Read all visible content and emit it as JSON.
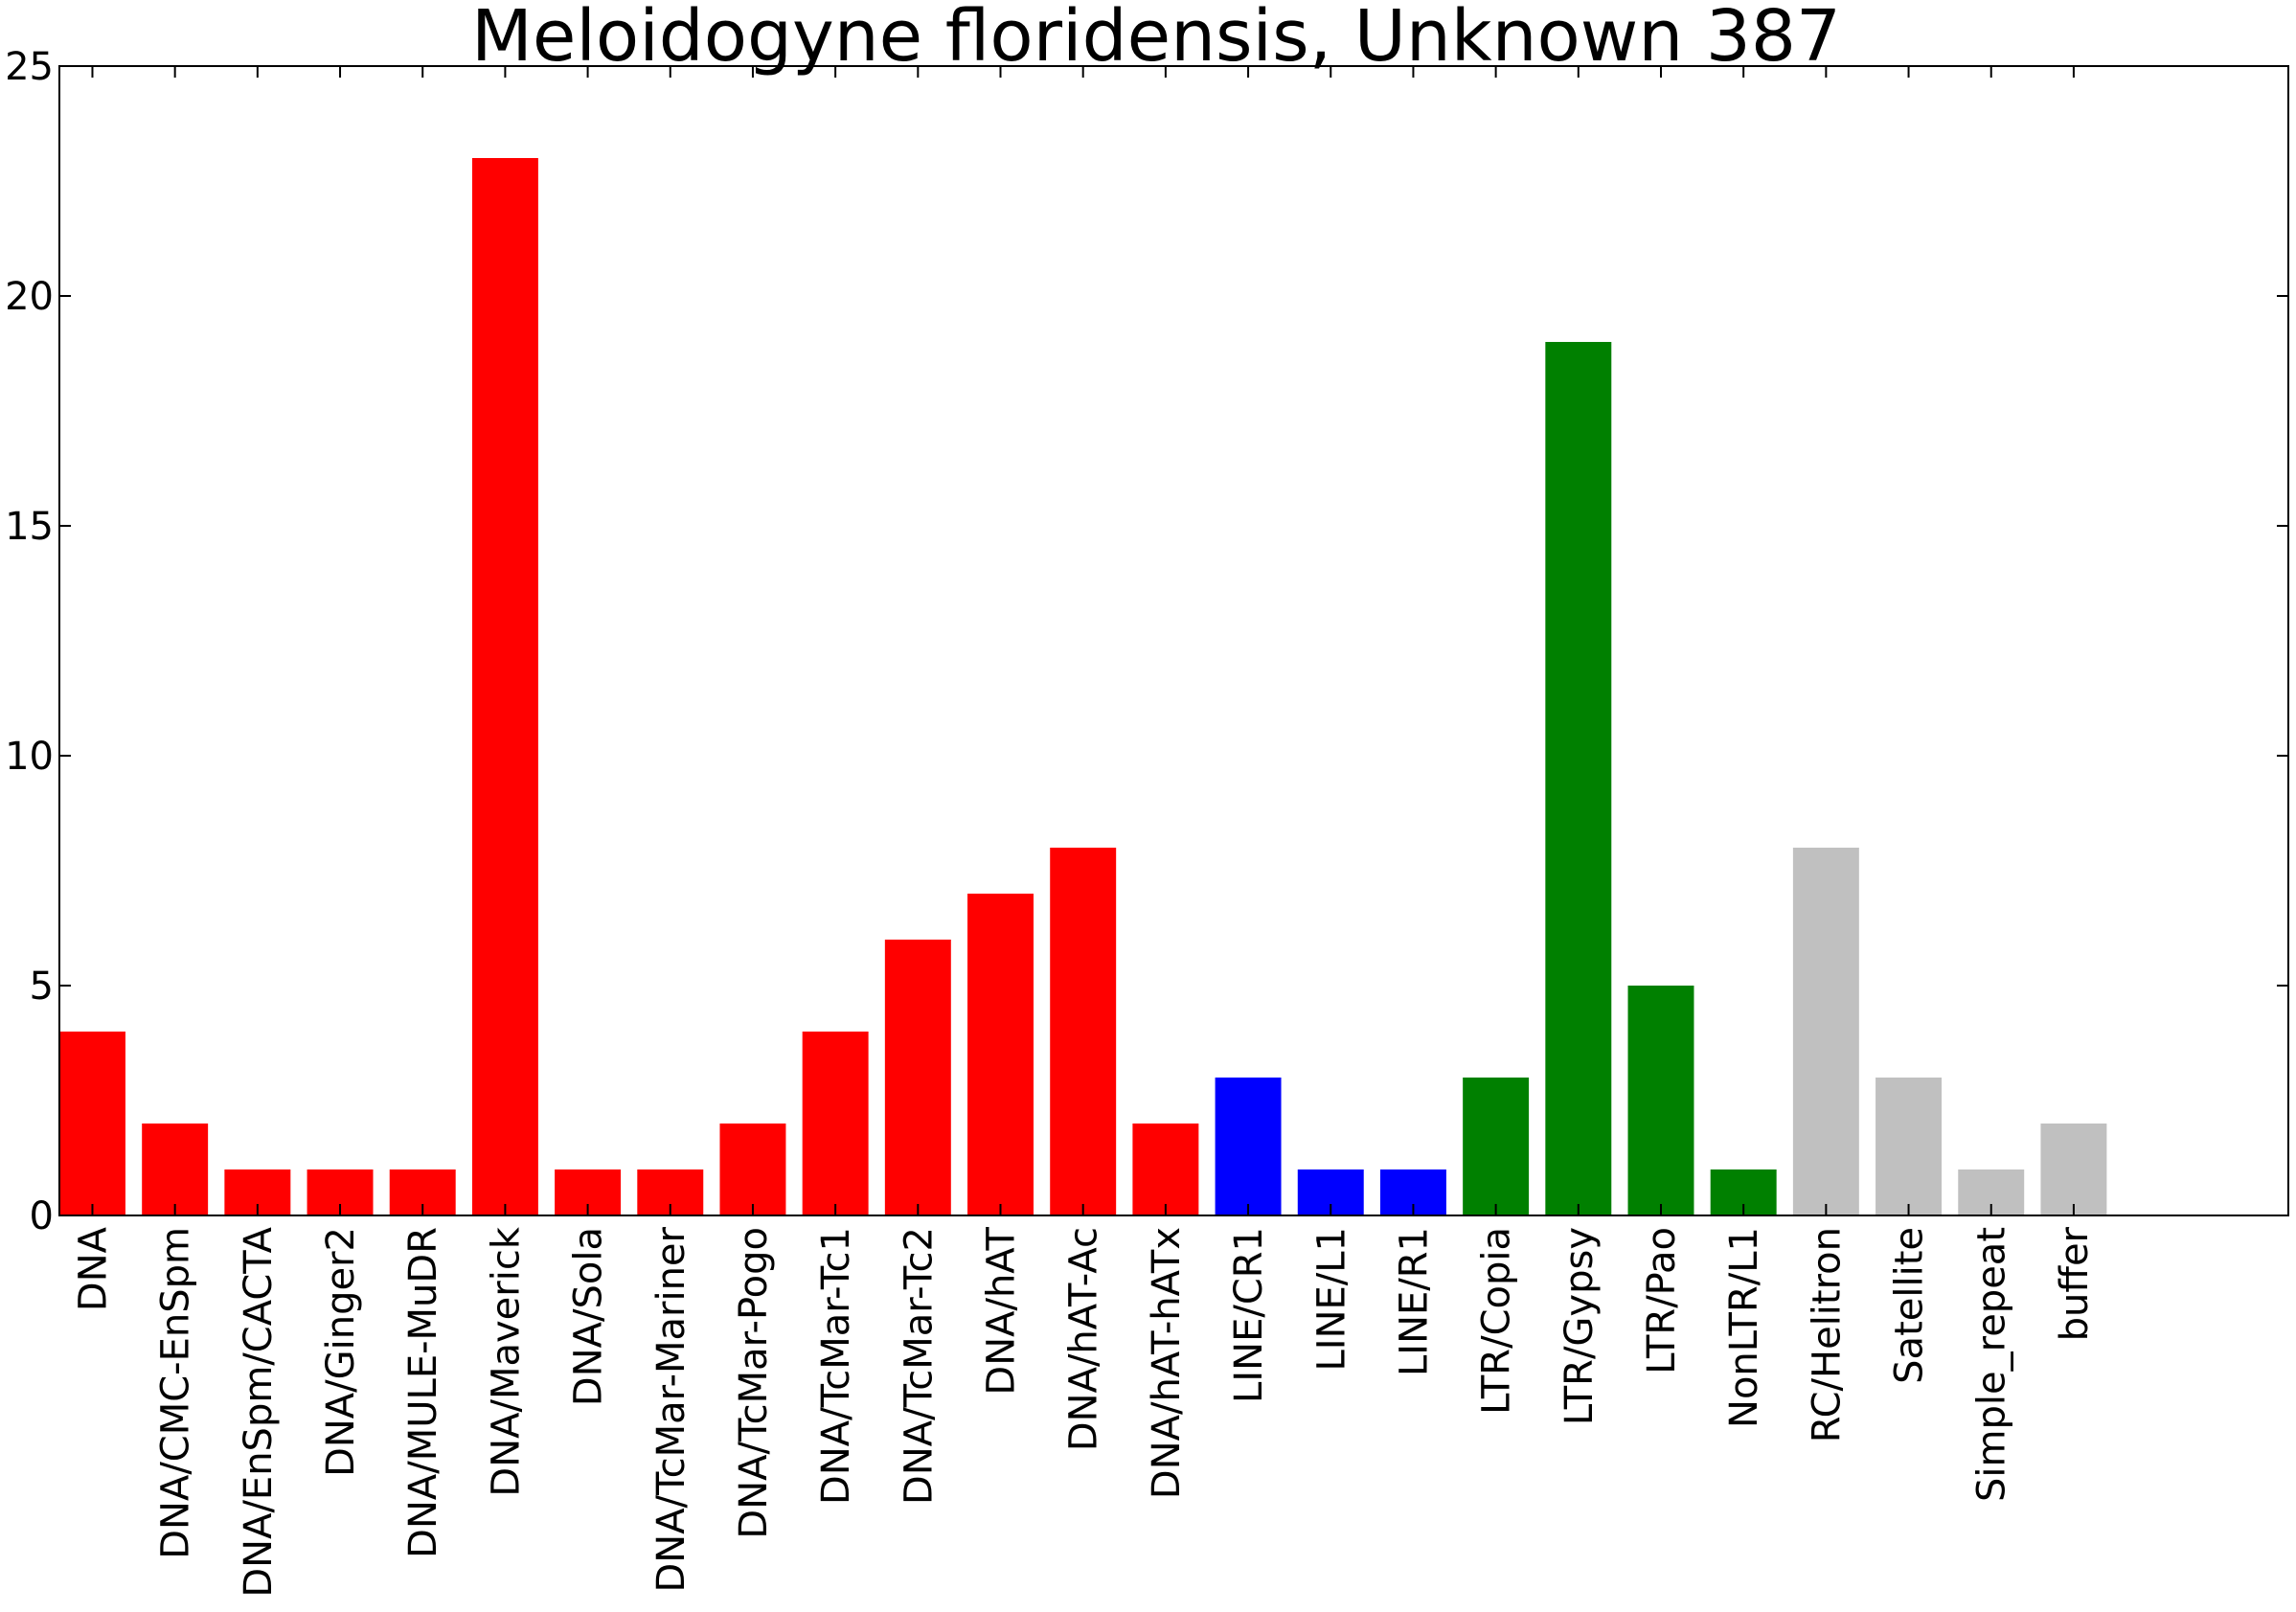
{
  "chart_data": {
    "type": "bar",
    "title": "Meloidogyne floridensis, Unknown 387",
    "xlabel": "",
    "ylabel": "",
    "ylim": [
      0,
      25
    ],
    "yticks": [
      "0",
      "5",
      "10",
      "15",
      "20",
      "25"
    ],
    "grid": false,
    "legend": "none",
    "categories": [
      "DNA",
      "DNA/CMC-EnSpm",
      "DNA/EnSpm/CACTA",
      "DNA/Ginger2",
      "DNA/MULE-MuDR",
      "DNA/Maverick",
      "DNA/Sola",
      "DNA/TcMar-Mariner",
      "DNA/TcMar-Pogo",
      "DNA/TcMar-Tc1",
      "DNA/TcMar-Tc2",
      "DNA/hAT",
      "DNA/hAT-Ac",
      "DNA/hAT-hATx",
      "LINE/CR1",
      "LINE/L1",
      "LINE/R1",
      "LTR/Copia",
      "LTR/Gypsy",
      "LTR/Pao",
      "NonLTR/L1",
      "RC/Helitron",
      "Satellite",
      "Simple_repeat",
      "buffer"
    ],
    "values": [
      4,
      2,
      1,
      1,
      1,
      23,
      1,
      1,
      2,
      4,
      6,
      7,
      8,
      2,
      3,
      1,
      1,
      3,
      19,
      5,
      1,
      8,
      3,
      1,
      2
    ],
    "colors": [
      "#ff0000",
      "#ff0000",
      "#ff0000",
      "#ff0000",
      "#ff0000",
      "#ff0000",
      "#ff0000",
      "#ff0000",
      "#ff0000",
      "#ff0000",
      "#ff0000",
      "#ff0000",
      "#ff0000",
      "#ff0000",
      "#0000ff",
      "#0000ff",
      "#0000ff",
      "#008000",
      "#008000",
      "#008000",
      "#008000",
      "#c0c0c0",
      "#c0c0c0",
      "#c0c0c0",
      "#c0c0c0"
    ]
  }
}
